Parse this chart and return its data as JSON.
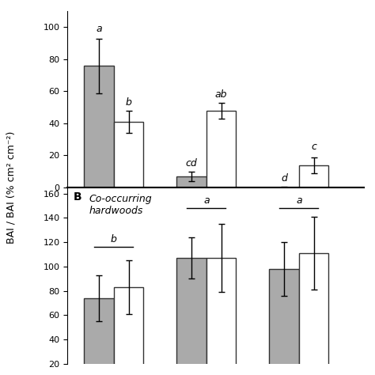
{
  "panel_A": {
    "gray_values": [
      76,
      7,
      0
    ],
    "white_values": [
      41,
      48,
      14
    ],
    "gray_errors": [
      17,
      3,
      0.5
    ],
    "white_errors": [
      7,
      5,
      5
    ],
    "gray_labels": [
      "a",
      "cd",
      "d"
    ],
    "white_labels": [
      "b",
      "ab",
      "c"
    ],
    "ylim": [
      0,
      110
    ],
    "yticks": [
      0,
      20,
      40,
      60,
      80,
      100
    ]
  },
  "panel_B": {
    "label_bold": "B",
    "label_italic": "Co-occurring\nhardwoods",
    "gray_values": [
      74,
      107,
      98
    ],
    "white_values": [
      83,
      107,
      111
    ],
    "gray_errors": [
      19,
      17,
      22
    ],
    "white_errors": [
      22,
      28,
      30
    ],
    "group_labels": [
      "b",
      "a",
      "a"
    ],
    "ylim": [
      20,
      165
    ],
    "yticks": [
      20,
      40,
      60,
      80,
      100,
      120,
      140,
      160
    ]
  },
  "bar_width": 0.32,
  "gray_color": "#aaaaaa",
  "white_color": "#ffffff",
  "bar_edge_color": "#333333",
  "group_positions": [
    1,
    2,
    3
  ],
  "xlim": [
    0.5,
    3.7
  ],
  "ylabel": "BAI / BAI (% cm² cm⁻²)",
  "figure_bg": "#ffffff"
}
